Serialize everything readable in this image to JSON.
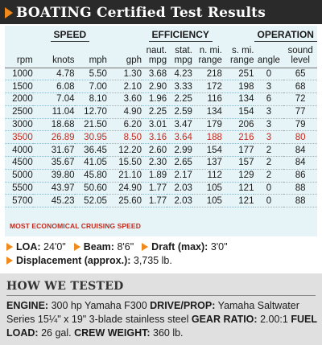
{
  "header": {
    "brand": "BOATING",
    "title": "Certified Test Results",
    "accent_color": "#f08a1c",
    "bar_color": "#2a2a2a"
  },
  "table": {
    "groups": {
      "speed": "SPEED",
      "efficiency": "EFFICIENCY",
      "operation": "OPERATION"
    },
    "columns": {
      "rpm": "rpm",
      "knots": "knots",
      "mph": "mph",
      "gph": "gph",
      "naut_1": "naut.",
      "naut_2": "mpg",
      "stat_1": "stat.",
      "stat_2": "mpg",
      "nmi_1": "n. mi.",
      "nmi_2": "range",
      "smi_1": "s. mi.",
      "smi_2": "range",
      "angle": "angle",
      "sound_1": "sound",
      "sound_2": "level"
    },
    "rows": [
      [
        "1000",
        "4.78",
        "5.50",
        "1.30",
        "3.68",
        "4.23",
        "218",
        "251",
        "0",
        "65"
      ],
      [
        "1500",
        "6.08",
        "7.00",
        "2.10",
        "2.90",
        "3.33",
        "172",
        "198",
        "3",
        "68"
      ],
      [
        "2000",
        "7.04",
        "8.10",
        "3.60",
        "1.96",
        "2.25",
        "116",
        "134",
        "6",
        "72"
      ],
      [
        "2500",
        "11.04",
        "12.70",
        "4.90",
        "2.25",
        "2.59",
        "134",
        "154",
        "3",
        "77"
      ],
      [
        "3000",
        "18.68",
        "21.50",
        "6.20",
        "3.01",
        "3.47",
        "179",
        "206",
        "3",
        "79"
      ],
      [
        "3500",
        "26.89",
        "30.95",
        "8.50",
        "3.16",
        "3.64",
        "188",
        "216",
        "3",
        "80"
      ],
      [
        "4000",
        "31.67",
        "36.45",
        "12.20",
        "2.60",
        "2.99",
        "154",
        "177",
        "2",
        "84"
      ],
      [
        "4500",
        "35.67",
        "41.05",
        "15.50",
        "2.30",
        "2.65",
        "137",
        "157",
        "2",
        "84"
      ],
      [
        "5000",
        "39.80",
        "45.80",
        "21.10",
        "1.89",
        "2.17",
        "112",
        "129",
        "2",
        "86"
      ],
      [
        "5500",
        "43.97",
        "50.60",
        "24.90",
        "1.77",
        "2.03",
        "105",
        "121",
        "0",
        "88"
      ],
      [
        "5700",
        "45.23",
        "52.05",
        "25.60",
        "1.77",
        "2.03",
        "105",
        "121",
        "0",
        "88"
      ]
    ],
    "highlight_row_rpm": "3500",
    "highlight_color": "#c42a1d",
    "footnote": "MOST ECONOMICAL CRUISING SPEED",
    "panel_color": "#e6f4f7"
  },
  "specs": {
    "loa_label": "LOA:",
    "loa_value": "24'0\"",
    "beam_label": "Beam:",
    "beam_value": "8'6\"",
    "draft_label": "Draft (max):",
    "draft_value": "3'0\"",
    "displacement_label": "Displacement (approx.):",
    "displacement_value": "3,735 lb."
  },
  "how_we_tested": {
    "title": "HOW WE TESTED",
    "engine_label": "ENGINE:",
    "engine_value": "300 hp Yamaha F300",
    "drive_label": "DRIVE/PROP:",
    "drive_value": "Yamaha Saltwater Series 15¼\" x 19\" 3-blade stainless steel",
    "gear_label": "GEAR RATIO:",
    "gear_value": "2.00:1",
    "fuel_label": "FUEL LOAD:",
    "fuel_value": "26 gal.",
    "crew_label": "CREW WEIGHT:",
    "crew_value": "360 lb."
  }
}
